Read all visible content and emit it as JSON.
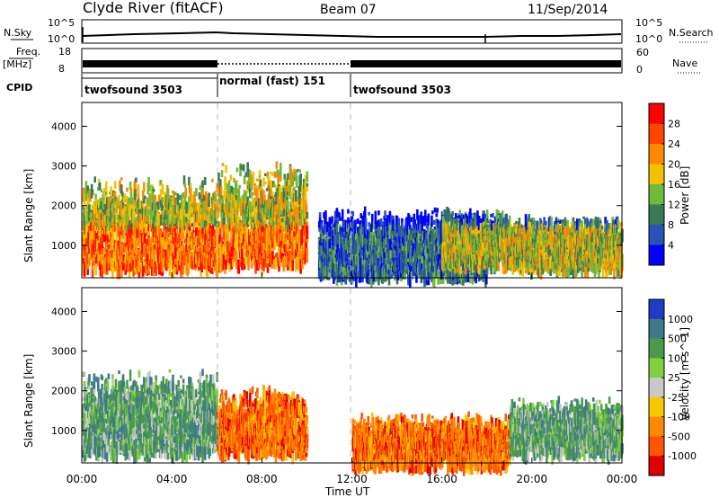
{
  "header": {
    "station": "Clyde River (fitACF)",
    "beam": "Beam 07",
    "date": "11/Sep/2014"
  },
  "top_panel": {
    "nsky_label": "N.Sky",
    "nsearch_label": "N.Search",
    "nsky_ticks": [
      "10^5",
      "10^0"
    ],
    "nsearch_ticks": [
      "10^5",
      "10^0"
    ],
    "freq_label": "Freq.",
    "freq_unit": "[MHz]",
    "freq_ticks": [
      "18",
      "8"
    ],
    "nave_label": "Nave",
    "nave_ticks": [
      "60",
      "0"
    ],
    "cpid_label": "CPID",
    "cpid_segments": [
      {
        "label": "twofsound 3503",
        "start_hour": 0,
        "end_hour": 6
      },
      {
        "label": "normal (fast) 151",
        "start_hour": 6,
        "end_hour": 12
      },
      {
        "label": "twofsound 3503",
        "start_hour": 12,
        "end_hour": 24
      }
    ]
  },
  "chart_data": [
    {
      "type": "heatmap",
      "quantity": "Power",
      "ylabel": "Slant Range [km]",
      "xlabel": "",
      "xlim_hours": [
        0,
        24
      ],
      "ylim": [
        180,
        4600
      ],
      "yticks": [
        "1000",
        "2000",
        "3000",
        "4000"
      ],
      "colorbar_label": "Power [dB]",
      "colorbar_ticks": [
        "4",
        "8",
        "12",
        "16",
        "20",
        "24",
        "28"
      ],
      "colorbar_colors": [
        "#0000ff",
        "#2a52b8",
        "#3a7a55",
        "#6dbb3a",
        "#f2c200",
        "#ff8800",
        "#ff4400",
        "#ff0000"
      ],
      "echo_regions": [
        {
          "start_hour": 0.0,
          "end_hour": 6.0,
          "range_min": 500,
          "range_max": 2800,
          "level": "high"
        },
        {
          "start_hour": 6.0,
          "end_hour": 10.0,
          "range_min": 600,
          "range_max": 3200,
          "level": "high"
        },
        {
          "start_hour": 10.5,
          "end_hour": 18.0,
          "range_min": 300,
          "range_max": 2000,
          "level": "low"
        },
        {
          "start_hour": 16.0,
          "end_hour": 19.0,
          "range_min": 600,
          "range_max": 2000,
          "level": "medium"
        },
        {
          "start_hour": 19.0,
          "end_hour": 24.0,
          "range_min": 500,
          "range_max": 1800,
          "level": "medium"
        }
      ]
    },
    {
      "type": "heatmap",
      "quantity": "Velocity",
      "ylabel": "Slant Range [km]",
      "xlabel": "Time UT",
      "xlim_hours": [
        0,
        24
      ],
      "ylim": [
        180,
        4600
      ],
      "yticks": [
        "1000",
        "2000",
        "3000",
        "4000"
      ],
      "xticks": [
        "00:00",
        "04:00",
        "08:00",
        "12:00",
        "16:00",
        "20:00",
        "00:00"
      ],
      "colorbar_label": "Velocity [m s^-1]",
      "colorbar_ticks": [
        "1000",
        "500",
        "100",
        "25",
        "-25",
        "-100",
        "-500",
        "-1000"
      ],
      "colorbar_colors": [
        "#1e3cc8",
        "#3e7a8a",
        "#4a9a4a",
        "#7fcf3f",
        "#c8c8c8",
        "#f5c800",
        "#ff8800",
        "#ff5500",
        "#e00000"
      ],
      "echo_regions": [
        {
          "start_hour": 0.0,
          "end_hour": 6.0,
          "range_min": 500,
          "range_max": 2600,
          "velocity": "toward (green/blue)"
        },
        {
          "start_hour": 6.0,
          "end_hour": 10.0,
          "range_min": 500,
          "range_max": 2200,
          "velocity": "away (orange)"
        },
        {
          "start_hour": 12.0,
          "end_hour": 19.0,
          "range_min": 200,
          "range_max": 1500,
          "velocity": "away (orange/red)"
        },
        {
          "start_hour": 19.0,
          "end_hour": 24.0,
          "range_min": 500,
          "range_max": 1900,
          "velocity": "toward (green)"
        }
      ]
    }
  ]
}
